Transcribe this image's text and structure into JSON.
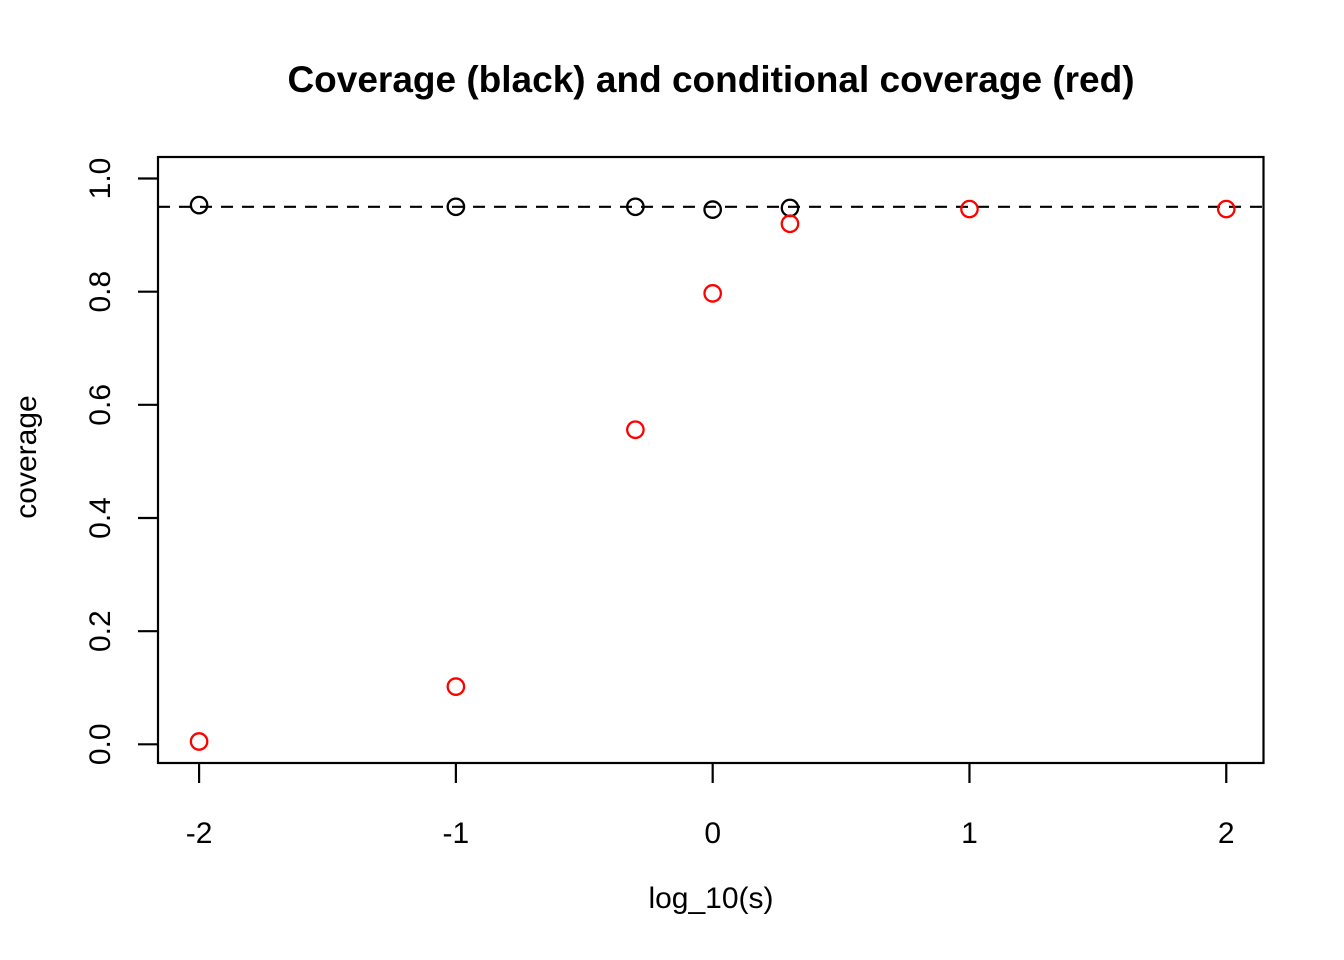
{
  "chart_data": {
    "type": "scatter",
    "title": "Coverage (black) and conditional coverage (red)",
    "xlabel": "log_10(s)",
    "ylabel": "coverage",
    "xlim": [
      -2.16,
      2.145
    ],
    "ylim": [
      -0.033,
      1.038
    ],
    "grid": false,
    "legend": "none (series identified by color in title)",
    "x_ticks": [
      {
        "value": -2,
        "label": "-2"
      },
      {
        "value": -1,
        "label": "-1"
      },
      {
        "value": 0,
        "label": "0"
      },
      {
        "value": 1,
        "label": "1"
      },
      {
        "value": 2,
        "label": "2"
      }
    ],
    "y_ticks": [
      {
        "value": 0.0,
        "label": "0.0"
      },
      {
        "value": 0.2,
        "label": "0.2"
      },
      {
        "value": 0.4,
        "label": "0.4"
      },
      {
        "value": 0.6,
        "label": "0.6"
      },
      {
        "value": 0.8,
        "label": "0.8"
      },
      {
        "value": 1.0,
        "label": "1.0"
      }
    ],
    "reference_line": {
      "y": 0.95,
      "style": "dashed",
      "color": "#000000"
    },
    "series": [
      {
        "name": "coverage",
        "id": "coverage-black",
        "color": "#000000",
        "marker": "open-circle",
        "points": [
          [
            -2,
            0.953
          ],
          [
            -1,
            0.95
          ],
          [
            -0.301,
            0.95
          ],
          [
            0,
            0.945
          ],
          [
            0.301,
            0.948
          ]
        ]
      },
      {
        "name": "conditional coverage",
        "id": "conditional-coverage-red",
        "color": "#FF0000",
        "marker": "open-circle",
        "points": [
          [
            -2,
            0.005
          ],
          [
            -1,
            0.102
          ],
          [
            -0.301,
            0.556
          ],
          [
            0,
            0.797
          ],
          [
            0.301,
            0.92
          ],
          [
            1,
            0.946
          ],
          [
            2,
            0.946
          ]
        ]
      }
    ]
  }
}
